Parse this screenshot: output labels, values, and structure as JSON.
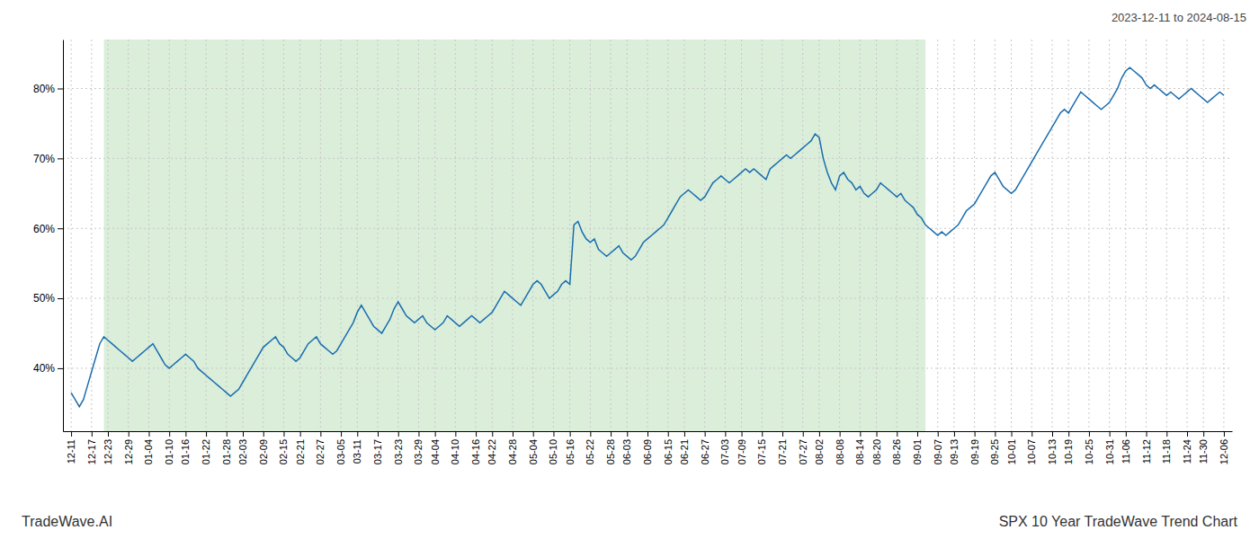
{
  "chart_data": {
    "type": "line",
    "title": "2023-12-11 to 2024-08-15",
    "annotations": [
      "TradeWave.AI",
      "SPX 10 Year TradeWave Trend Chart"
    ],
    "color": "#1a6daf",
    "span": {
      "start": 8,
      "end": 209,
      "color": "#daeeda"
    },
    "ylim": [
      31,
      87
    ],
    "yticks": [
      {
        "value": 40,
        "label": "40%"
      },
      {
        "value": 50,
        "label": "50%"
      },
      {
        "value": 60,
        "label": "60%"
      },
      {
        "value": 70,
        "label": "70%"
      },
      {
        "value": 80,
        "label": "80%"
      }
    ],
    "grid": true,
    "categories": [
      "12-11",
      null,
      null,
      null,
      null,
      "12-17",
      null,
      null,
      null,
      "12-23",
      null,
      null,
      null,
      null,
      "12-29",
      null,
      null,
      null,
      null,
      "01-04",
      null,
      null,
      null,
      null,
      "01-10",
      null,
      null,
      null,
      "01-16",
      null,
      null,
      null,
      null,
      "01-22",
      null,
      null,
      null,
      null,
      "01-28",
      null,
      null,
      null,
      "02-03",
      null,
      null,
      null,
      null,
      "02-09",
      null,
      null,
      null,
      null,
      "02-15",
      null,
      null,
      null,
      "02-21",
      null,
      null,
      null,
      null,
      "02-27",
      null,
      null,
      null,
      null,
      "03-05",
      null,
      null,
      null,
      "03-11",
      null,
      null,
      null,
      null,
      "03-17",
      null,
      null,
      null,
      null,
      "03-23",
      null,
      null,
      null,
      null,
      "03-29",
      null,
      null,
      null,
      "04-04",
      null,
      null,
      null,
      null,
      "04-10",
      null,
      null,
      null,
      null,
      "04-16",
      null,
      null,
      null,
      "04-22",
      null,
      null,
      null,
      null,
      "04-28",
      null,
      null,
      null,
      null,
      "05-04",
      null,
      null,
      null,
      null,
      "05-10",
      null,
      null,
      null,
      "05-16",
      null,
      null,
      null,
      null,
      "05-22",
      null,
      null,
      null,
      null,
      "05-28",
      null,
      null,
      null,
      "06-03",
      null,
      null,
      null,
      null,
      "06-09",
      null,
      null,
      null,
      null,
      "06-15",
      null,
      null,
      null,
      "06-21",
      null,
      null,
      null,
      null,
      "06-27",
      null,
      null,
      null,
      null,
      "07-03",
      null,
      null,
      null,
      "07-09",
      null,
      null,
      null,
      null,
      "07-15",
      null,
      null,
      null,
      null,
      "07-21",
      null,
      null,
      null,
      null,
      "07-27",
      null,
      null,
      null,
      "08-02",
      null,
      null,
      null,
      null,
      "08-08",
      null,
      null,
      null,
      null,
      "08-14",
      null,
      null,
      null,
      "08-20",
      null,
      null,
      null,
      null,
      "08-26",
      null,
      null,
      null,
      null,
      "09-01",
      null,
      null,
      null,
      null,
      "09-07",
      null,
      null,
      null,
      "09-13",
      null,
      null,
      null,
      null,
      "09-19",
      null,
      null,
      null,
      null,
      "09-25",
      null,
      null,
      null,
      "10-01",
      null,
      null,
      null,
      null,
      "10-07",
      null,
      null,
      null,
      null,
      "10-13",
      null,
      null,
      null,
      "10-19",
      null,
      null,
      null,
      null,
      "10-25",
      null,
      null,
      null,
      null,
      "10-31",
      null,
      null,
      null,
      "11-06",
      null,
      null,
      null,
      null,
      "11-12",
      null,
      null,
      null,
      null,
      "11-18",
      null,
      null,
      null,
      null,
      "11-24",
      null,
      null,
      null,
      "11-30",
      null,
      null,
      null,
      null,
      "12-06"
    ],
    "values": [
      36.5,
      35.5,
      34.5,
      35.5,
      37.5,
      39.5,
      41.5,
      43.5,
      44.5,
      44.0,
      43.5,
      43.0,
      42.5,
      42.0,
      41.5,
      41.0,
      41.5,
      42.0,
      42.5,
      43.0,
      43.5,
      42.5,
      41.5,
      40.5,
      40.0,
      40.5,
      41.0,
      41.5,
      42.0,
      41.5,
      41.0,
      40.0,
      39.5,
      39.0,
      38.5,
      38.0,
      37.5,
      37.0,
      36.5,
      36.0,
      36.5,
      37.0,
      38.0,
      39.0,
      40.0,
      41.0,
      42.0,
      43.0,
      43.5,
      44.0,
      44.5,
      43.5,
      43.0,
      42.0,
      41.5,
      41.0,
      41.5,
      42.5,
      43.5,
      44.0,
      44.5,
      43.5,
      43.0,
      42.5,
      42.0,
      42.5,
      43.5,
      44.5,
      45.5,
      46.5,
      48.0,
      49.0,
      48.0,
      47.0,
      46.0,
      45.5,
      45.0,
      46.0,
      47.0,
      48.5,
      49.5,
      48.5,
      47.5,
      47.0,
      46.5,
      47.0,
      47.5,
      46.5,
      46.0,
      45.5,
      46.0,
      46.5,
      47.5,
      47.0,
      46.5,
      46.0,
      46.5,
      47.0,
      47.5,
      47.0,
      46.5,
      47.0,
      47.5,
      48.0,
      49.0,
      50.0,
      51.0,
      50.5,
      50.0,
      49.5,
      49.0,
      50.0,
      51.0,
      52.0,
      52.5,
      52.0,
      51.0,
      50.0,
      50.5,
      51.0,
      52.0,
      52.5,
      52.0,
      60.5,
      61.0,
      59.5,
      58.5,
      58.0,
      58.5,
      57.0,
      56.5,
      56.0,
      56.5,
      57.0,
      57.5,
      56.5,
      56.0,
      55.5,
      56.0,
      57.0,
      58.0,
      58.5,
      59.0,
      59.5,
      60.0,
      60.5,
      61.5,
      62.5,
      63.5,
      64.5,
      65.0,
      65.5,
      65.0,
      64.5,
      64.0,
      64.5,
      65.5,
      66.5,
      67.0,
      67.5,
      67.0,
      66.5,
      67.0,
      67.5,
      68.0,
      68.5,
      68.0,
      68.5,
      68.0,
      67.5,
      67.0,
      68.5,
      69.0,
      69.5,
      70.0,
      70.5,
      70.0,
      70.5,
      71.0,
      71.5,
      72.0,
      72.5,
      73.5,
      73.0,
      70.0,
      68.0,
      66.5,
      65.5,
      67.5,
      68.0,
      67.0,
      66.5,
      65.5,
      66.0,
      65.0,
      64.5,
      65.0,
      65.5,
      66.5,
      66.0,
      65.5,
      65.0,
      64.5,
      65.0,
      64.0,
      63.5,
      63.0,
      62.0,
      61.5,
      60.5,
      60.0,
      59.5,
      59.0,
      59.5,
      59.0,
      59.5,
      60.0,
      60.5,
      61.5,
      62.5,
      63.0,
      63.5,
      64.5,
      65.5,
      66.5,
      67.5,
      68.0,
      67.0,
      66.0,
      65.5,
      65.0,
      65.5,
      66.5,
      67.5,
      68.5,
      69.5,
      70.5,
      71.5,
      72.5,
      73.5,
      74.5,
      75.5,
      76.5,
      77.0,
      76.5,
      77.5,
      78.5,
      79.5,
      79.0,
      78.5,
      78.0,
      77.5,
      77.0,
      77.5,
      78.0,
      79.0,
      80.0,
      81.5,
      82.5,
      83.0,
      82.5,
      82.0,
      81.5,
      80.5,
      80.0,
      80.5,
      80.0,
      79.5,
      79.0,
      79.5,
      79.0,
      78.5,
      79.0,
      79.5,
      80.0,
      79.5,
      79.0,
      78.5,
      78.0,
      78.5,
      79.0,
      79.5,
      79.0
    ]
  }
}
